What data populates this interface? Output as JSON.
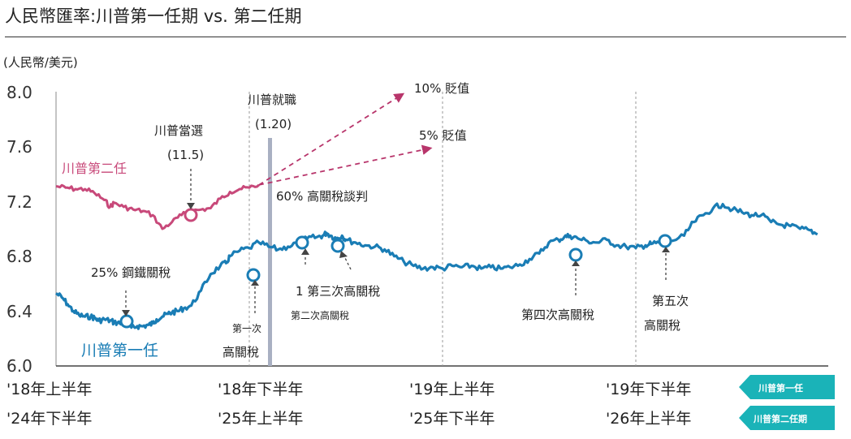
{
  "header": {
    "title": "人民幣匯率:川普第一任期 vs. 第二任期"
  },
  "chart_data": {
    "type": "line",
    "title": "人民幣匯率:川普第一任期 vs. 第二任期",
    "ylabel": "(人民幣/美元)",
    "ylim": [
      6.0,
      8.0
    ],
    "yticks": [
      "8.0",
      "7.6",
      "7.2",
      "6.8",
      "6.4",
      "6.0"
    ],
    "x_labels_row1": [
      "'18年上半年",
      "'18年下半年",
      "'19年上半年",
      "'19年下半年"
    ],
    "x_labels_row2": [
      "'24年下半年",
      "'25年上半年",
      "'25年下半年",
      "'26年上半年"
    ],
    "legend": [
      "川普第一任",
      "川普第二任期"
    ],
    "colors": {
      "first_term": "#1a7db5",
      "second_term": "#c8497a",
      "projection": "#b8356b",
      "band": "#a9b0c2",
      "badge": "#1ab3b8"
    },
    "series": [
      {
        "name": "川普第一任",
        "x": [
          0.0,
          0.03,
          0.06,
          0.09,
          0.12,
          0.15,
          0.18,
          0.2,
          0.22,
          0.25,
          0.28,
          0.3,
          0.33,
          0.36,
          0.39,
          0.42,
          0.45,
          0.48,
          0.5,
          0.52,
          0.55,
          0.58,
          0.6,
          0.63,
          0.66,
          0.7,
          0.75,
          0.8,
          0.85,
          0.88,
          0.9,
          0.95,
          1.0,
          1.05,
          1.1,
          1.15,
          1.2,
          1.25,
          1.3,
          1.35,
          1.38,
          1.4,
          1.42,
          1.45,
          1.48,
          1.5,
          1.55,
          1.6,
          1.65,
          1.7,
          1.75,
          1.8,
          1.85,
          1.9,
          1.95,
          2.0,
          2.05,
          2.1,
          2.15,
          2.2,
          2.25,
          2.3,
          2.35,
          2.4,
          2.45,
          2.5,
          2.55,
          2.6,
          2.63,
          2.66,
          2.7,
          2.75,
          2.8,
          2.85,
          2.9,
          2.95,
          3.0,
          3.05,
          3.08,
          3.12,
          3.18,
          3.25,
          3.3,
          3.35,
          3.4,
          3.45,
          3.5,
          3.55,
          3.6,
          3.65,
          3.7,
          3.75,
          3.8,
          3.85,
          3.9,
          3.94
        ],
        "values": [
          6.53,
          6.5,
          6.45,
          6.4,
          6.37,
          6.36,
          6.36,
          6.35,
          6.33,
          6.34,
          6.33,
          6.32,
          6.31,
          6.3,
          6.28,
          6.29,
          6.29,
          6.3,
          6.31,
          6.34,
          6.36,
          6.38,
          6.39,
          6.4,
          6.42,
          6.44,
          6.55,
          6.67,
          6.73,
          6.75,
          6.8,
          6.84,
          6.86,
          6.9,
          6.87,
          6.85,
          6.87,
          6.9,
          6.93,
          6.94,
          6.95,
          6.97,
          6.95,
          6.93,
          6.95,
          6.92,
          6.9,
          6.88,
          6.87,
          6.85,
          6.8,
          6.76,
          6.73,
          6.71,
          6.72,
          6.71,
          6.73,
          6.72,
          6.73,
          6.71,
          6.72,
          6.71,
          6.72,
          6.74,
          6.78,
          6.82,
          6.9,
          6.92,
          6.94,
          6.95,
          6.93,
          6.91,
          6.9,
          6.92,
          6.88,
          6.87,
          6.86,
          6.88,
          6.89,
          6.9,
          6.91,
          6.95,
          7.05,
          7.1,
          7.15,
          7.18,
          7.14,
          7.12,
          7.1,
          7.1,
          7.05,
          7.03,
          7.02,
          7.0,
          6.99,
          6.96
        ]
      },
      {
        "name": "川普第二任期",
        "x": [
          0.0,
          0.05,
          0.1,
          0.15,
          0.2,
          0.25,
          0.28,
          0.3,
          0.35,
          0.4,
          0.45,
          0.5,
          0.55,
          0.6,
          0.65,
          0.7,
          0.75,
          0.8,
          0.85,
          0.9,
          0.95,
          1.0,
          1.05
        ],
        "values": [
          7.31,
          7.3,
          7.29,
          7.29,
          7.26,
          7.21,
          7.16,
          7.19,
          7.16,
          7.14,
          7.13,
          7.1,
          7.0,
          7.05,
          7.1,
          7.13,
          7.14,
          7.15,
          7.22,
          7.27,
          7.29,
          7.3,
          7.32
        ]
      }
    ],
    "projections": [
      {
        "label": "10% 貶值",
        "to": 8.0
      },
      {
        "label": "5% 貶值",
        "to": 7.6
      }
    ],
    "annotations": {
      "election": "川普當選",
      "election_value": "(11.5)",
      "inauguration": "川普就職",
      "inauguration_value": "(1.20)",
      "tariff60": "60% 高關稅談判",
      "steel": "25% 鋼鐵關稅",
      "first_label": "第一次",
      "first_label2": "高關稅",
      "second": "第二次高關稅",
      "third": "1 第三次高關稅",
      "fourth": "第四次高關稅",
      "fifth": "第五次",
      "fifth2": "高關稅",
      "label_first_term": "川普第一任",
      "label_second_term": "川普第二任"
    }
  }
}
